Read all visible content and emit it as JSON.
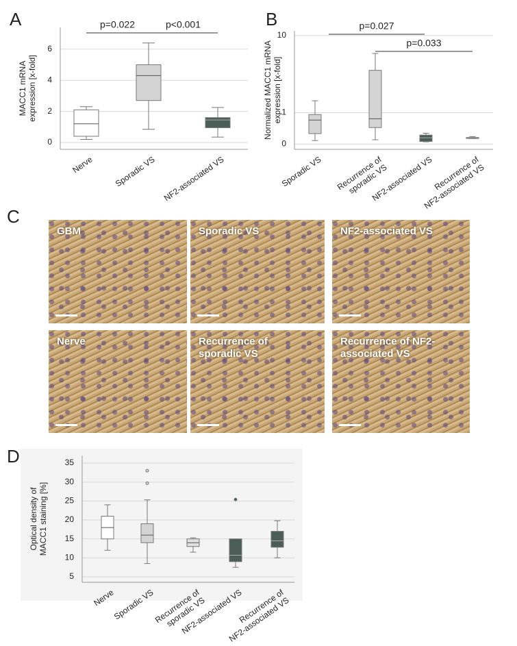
{
  "panel_labels": [
    "A",
    "B",
    "C",
    "D"
  ],
  "chart_data": [
    {
      "type": "box",
      "ylabel": [
        "MACC1 mRNA",
        "expression [x-fold]"
      ],
      "categories": [
        [
          "Nerve"
        ],
        [
          "Sporadic VS"
        ],
        [
          "NF2-associated VS"
        ]
      ],
      "stats": [
        {
          "min": 0.2,
          "q1": 0.4,
          "median": 1.2,
          "q3": 2.1,
          "max": 2.3,
          "outliers": []
        },
        {
          "min": 0.85,
          "q1": 2.7,
          "median": 4.3,
          "q3": 5.0,
          "max": 6.4,
          "outliers": []
        },
        {
          "min": 0.35,
          "q1": 0.95,
          "median": 1.45,
          "q3": 1.6,
          "max": 2.25,
          "outliers": []
        }
      ],
      "colors": [
        "#ffffff",
        "#d4d4d4",
        "#4a5e57"
      ],
      "ylim": [
        -0.44,
        7.4
      ],
      "yticks": [
        0,
        2,
        4,
        6
      ],
      "scale": "linear",
      "grid": true,
      "annotations": [
        "p=0.022",
        "p<0.001"
      ]
    },
    {
      "type": "box",
      "ylabel": [
        "Normalized MACC1 mRNA",
        "expression [x-fold]"
      ],
      "categories": [
        [
          "Sporadic VS"
        ],
        [
          "Recurrence of",
          "sporadic VS"
        ],
        [
          "NF2-associated VS"
        ],
        [
          "Recurrence of",
          "NF2-associated VS"
        ]
      ],
      "stats": [
        {
          "min": 0.08,
          "q1": 0.26,
          "median": 0.7,
          "q3": 0.92,
          "max": 1.6,
          "outliers": []
        },
        {
          "min": 0.1,
          "q1": 0.44,
          "median": 0.75,
          "q3": 4.1,
          "max": 6.4,
          "outliers": []
        },
        {
          "min": 0.05,
          "q1": 0.06,
          "median": 0.15,
          "q3": 0.22,
          "max": 0.27,
          "outliers": []
        },
        {
          "min": 0.13,
          "q1": 0.13,
          "median": 0.15,
          "q3": 0.16,
          "max": 0.18,
          "outliers": []
        }
      ],
      "colors": [
        "#d4d4d4",
        "#d4d4d4",
        "#4a5e57",
        "#4a5e57"
      ],
      "ylim": [
        -0.11,
        11.2
      ],
      "yticks": [
        0,
        1,
        10
      ],
      "scale": "log1p",
      "grid": true,
      "annotations": [
        "p=0.027",
        "p=0.033"
      ]
    },
    {
      "type": "box",
      "ylabel": [
        "Optical density of",
        "MACC1 staining [%]"
      ],
      "categories": [
        [
          "Nerve"
        ],
        [
          "Sporadic VS"
        ],
        [
          "Recurrence of",
          "sporadic VS"
        ],
        [
          "NF2-associated VS"
        ],
        [
          "Recurrence of",
          "NF2-associated VS"
        ]
      ],
      "stats": [
        {
          "min": 12,
          "q1": 15,
          "median": 18,
          "q3": 21,
          "max": 24,
          "outliers": []
        },
        {
          "min": 8.5,
          "q1": 14,
          "median": 16,
          "q3": 19,
          "max": 25.3,
          "outliers": [
            29.7,
            33
          ]
        },
        {
          "min": 11.5,
          "q1": 13,
          "median": 14,
          "q3": 15,
          "max": 15.3,
          "outliers": []
        },
        {
          "min": 7.5,
          "q1": 9,
          "median": 10.7,
          "q3": 15,
          "max": 15,
          "outliers": [
            25.4
          ]
        },
        {
          "min": 10,
          "q1": 12.8,
          "median": 14.5,
          "q3": 17,
          "max": 19.8,
          "outliers": []
        }
      ],
      "colors": [
        "#ffffff",
        "#d4d4d4",
        "#e0e0e0",
        "#4a5e57",
        "#4a5e57"
      ],
      "ylim": [
        3.55,
        37
      ],
      "yticks": [
        5,
        10,
        15,
        20,
        25,
        30,
        35
      ],
      "scale": "linear",
      "grid": true,
      "annotations": []
    }
  ],
  "micrographs": [
    {
      "label": [
        "GBM"
      ]
    },
    {
      "label": [
        "Sporadic VS"
      ]
    },
    {
      "label": [
        "NF2-associated VS"
      ]
    },
    {
      "label": [
        "Nerve"
      ]
    },
    {
      "label": [
        "Recurrence of",
        "sporadic VS"
      ]
    },
    {
      "label": [
        "Recurrence of NF2-",
        "associated VS"
      ]
    }
  ]
}
